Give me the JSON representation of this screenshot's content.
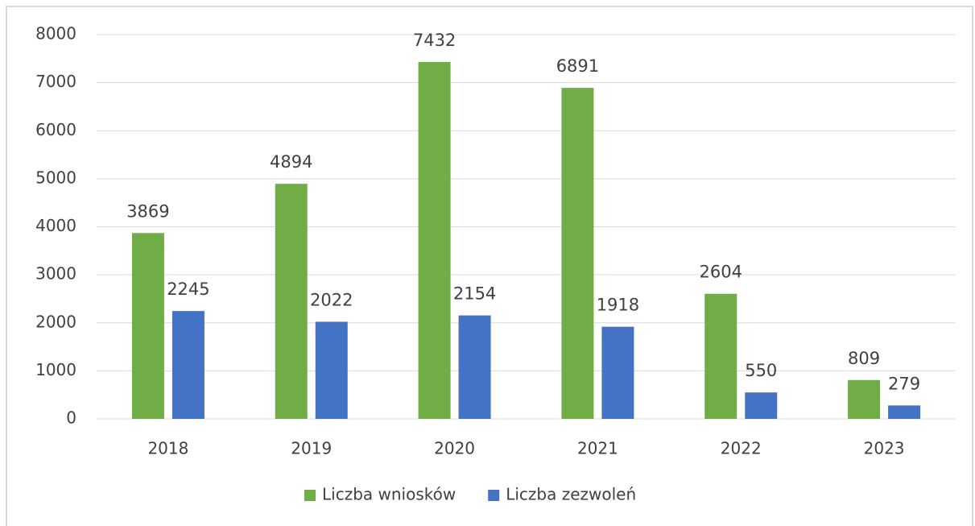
{
  "chart_data": {
    "type": "bar",
    "categories": [
      "2018",
      "2019",
      "2020",
      "2021",
      "2022",
      "2023"
    ],
    "series": [
      {
        "name": "Liczba wniosków",
        "color": "#70ad47",
        "values": [
          3869,
          4894,
          7432,
          6891,
          2604,
          809
        ]
      },
      {
        "name": "Liczba zezwoleń",
        "color": "#4472c4",
        "values": [
          2245,
          2022,
          2154,
          1918,
          550,
          279
        ]
      }
    ],
    "ylim": [
      0,
      8000
    ],
    "yticks": [
      0,
      1000,
      2000,
      3000,
      4000,
      5000,
      6000,
      7000,
      8000
    ],
    "grid": true,
    "legend": "bottom"
  }
}
